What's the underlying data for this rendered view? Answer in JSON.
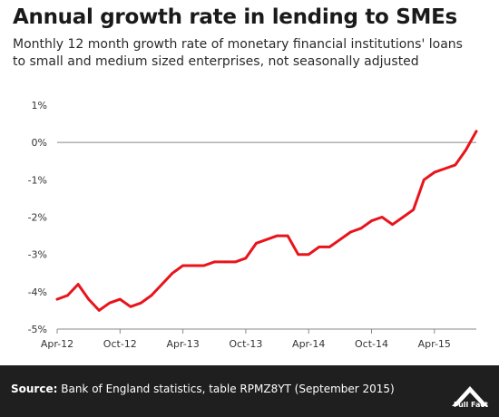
{
  "title": "Annual growth rate in lending to SMEs",
  "subtitle": "Monthly 12 month growth rate of monetary financial institutions' loans to small and medium sized enterprises, not seasonally adjusted",
  "footer": {
    "source_label": "Source:",
    "source_text": "Bank of England statistics, table RPMZ8YT (September 2015)",
    "logo_text": "Full Fact"
  },
  "chart_data": {
    "type": "line",
    "title": "Annual growth rate in lending to SMEs",
    "xlabel": "",
    "ylabel": "",
    "x": [
      "Apr-12",
      "May-12",
      "Jun-12",
      "Jul-12",
      "Aug-12",
      "Sep-12",
      "Oct-12",
      "Nov-12",
      "Dec-12",
      "Jan-13",
      "Feb-13",
      "Mar-13",
      "Apr-13",
      "May-13",
      "Jun-13",
      "Jul-13",
      "Aug-13",
      "Sep-13",
      "Oct-13",
      "Nov-13",
      "Dec-13",
      "Jan-14",
      "Feb-14",
      "Mar-14",
      "Apr-14",
      "May-14",
      "Jun-14",
      "Jul-14",
      "Aug-14",
      "Sep-14",
      "Oct-14",
      "Nov-14",
      "Dec-14",
      "Jan-15",
      "Feb-15",
      "Mar-15",
      "Apr-15",
      "May-15",
      "Jun-15",
      "Jul-15",
      "Aug-15"
    ],
    "series": [
      {
        "values": [
          -4.2,
          -4.1,
          -3.8,
          -4.2,
          -4.5,
          -4.3,
          -4.2,
          -4.4,
          -4.3,
          -4.1,
          -3.8,
          -3.5,
          -3.3,
          -3.3,
          -3.3,
          -3.2,
          -3.2,
          -3.2,
          -3.1,
          -2.7,
          -2.6,
          -2.5,
          -2.5,
          -3.0,
          -3.0,
          -2.8,
          -2.8,
          -2.6,
          -2.4,
          -2.3,
          -2.1,
          -2.0,
          -2.2,
          -2.0,
          -1.8,
          -1.0,
          -0.8,
          -0.7,
          -0.6,
          -0.2,
          0.3
        ],
        "color": "#e8141c"
      }
    ],
    "x_tick_labels": [
      "Apr-12",
      "Oct-12",
      "Apr-13",
      "Oct-13",
      "Apr-14",
      "Oct-14",
      "Apr-15"
    ],
    "x_tick_indices": [
      0,
      6,
      12,
      18,
      24,
      30,
      36
    ],
    "y_ticks": [
      1,
      0,
      -1,
      -2,
      -3,
      -4,
      -5
    ],
    "y_tick_labels": [
      "1%",
      "0%",
      "-1%",
      "-2%",
      "-3%",
      "-4%",
      "-5%"
    ],
    "ylim": [
      -5,
      1
    ],
    "grid": false,
    "zero_line": true,
    "legend": "none"
  }
}
